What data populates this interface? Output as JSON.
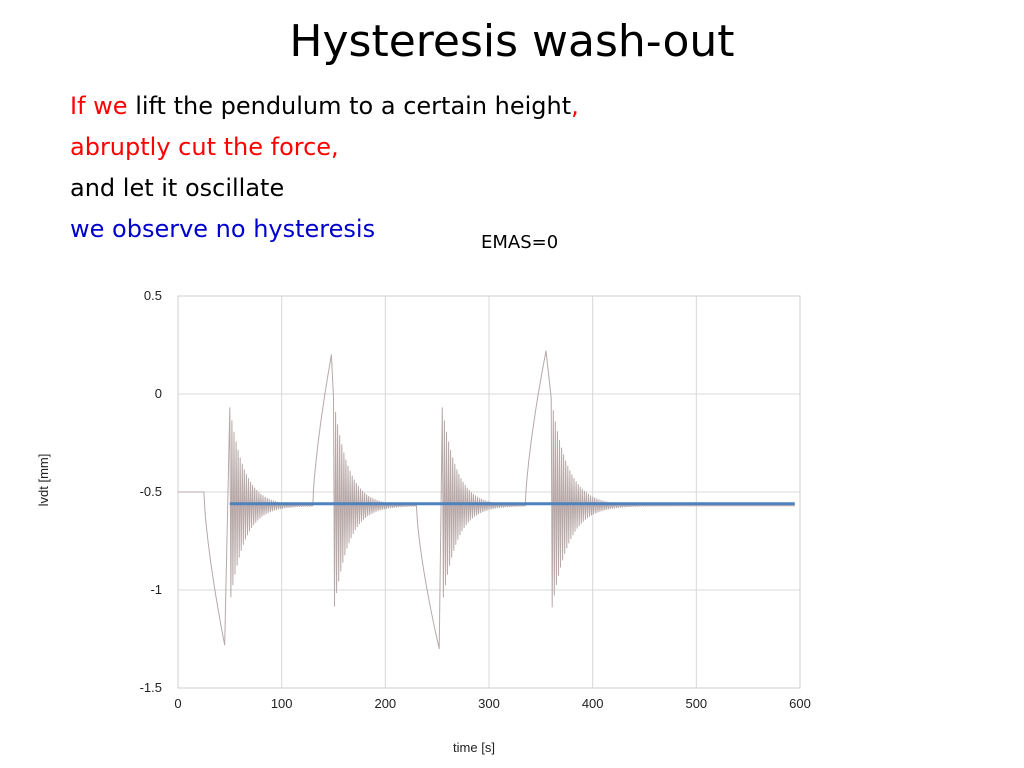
{
  "slide": {
    "title": "Hysteresis wash-out",
    "lines": [
      [
        {
          "text": "If we ",
          "color": "red"
        },
        {
          "text": "lift the pendulum to a certain height",
          "color": "black"
        },
        {
          "text": ",",
          "color": "red"
        }
      ],
      [
        {
          "text": "abruptly cut the force,",
          "color": "red"
        }
      ],
      [
        {
          "text": "and let it oscillate",
          "color": "black"
        }
      ],
      [
        {
          "text": "we observe no hysteresis",
          "color": "blue"
        }
      ]
    ],
    "annotation": "EMAS=0"
  },
  "chart_data": {
    "type": "line",
    "title": "",
    "xlabel": "time [s]",
    "ylabel": "lvdt [mm]",
    "xlim": [
      0,
      600
    ],
    "ylim": [
      -1.5,
      0.5
    ],
    "xticks": [
      0,
      100,
      200,
      300,
      400,
      500,
      600
    ],
    "yticks": [
      0.5,
      0,
      -0.5,
      -1,
      -1.5
    ],
    "ytick_labels": [
      "0.5",
      "0",
      "-0.5",
      "-1",
      "-1.5"
    ],
    "grid": true,
    "series": [
      {
        "color": "#b8a8a8",
        "segments": [
          {
            "type": "flat",
            "t": [
              0,
              25
            ],
            "value": -0.5
          },
          {
            "type": "ramp",
            "t": [
              25,
              45
            ],
            "from": -0.5,
            "to": -1.28
          },
          {
            "type": "oscillation",
            "t": [
              50,
              130
            ],
            "center": -0.57,
            "amplitude": 0.5,
            "period": 2,
            "decay": 14
          },
          {
            "type": "ramp",
            "t": [
              130,
              148
            ],
            "from": -0.57,
            "to": 0.2
          },
          {
            "type": "oscillation",
            "t": [
              150,
              230
            ],
            "center": -0.57,
            "amplitude": 0.55,
            "period": 2,
            "decay": 14
          },
          {
            "type": "ramp",
            "t": [
              230,
              252
            ],
            "from": -0.57,
            "to": -1.3
          },
          {
            "type": "oscillation",
            "t": [
              255,
              335
            ],
            "center": -0.57,
            "amplitude": 0.5,
            "period": 2,
            "decay": 14
          },
          {
            "type": "ramp",
            "t": [
              335,
              355
            ],
            "from": -0.57,
            "to": 0.22
          },
          {
            "type": "oscillation",
            "t": [
              360,
              595
            ],
            "center": -0.57,
            "amplitude": 0.55,
            "period": 2,
            "decay": 16
          }
        ]
      },
      {
        "color": "#4f81bd",
        "x": [
          50,
          595
        ],
        "values": [
          -0.56,
          -0.56
        ]
      }
    ]
  }
}
